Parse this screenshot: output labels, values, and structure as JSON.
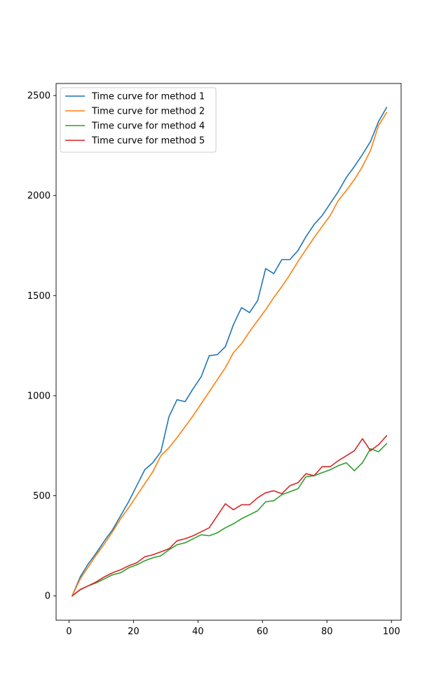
{
  "chart_data": {
    "type": "line",
    "title": "",
    "xlabel": "",
    "ylabel": "",
    "xlim": [
      -4.0,
      103.0
    ],
    "ylim": [
      -122,
      2560
    ],
    "xticks": [
      0,
      20,
      40,
      60,
      80,
      100
    ],
    "yticks": [
      0,
      500,
      1000,
      1500,
      2000,
      2500
    ],
    "grid": false,
    "legend_position": "top-left",
    "series": [
      {
        "name": "Time curve for method 1",
        "color": "#1f77b4",
        "x": [
          1,
          3.5,
          6,
          8.5,
          11,
          13.5,
          16,
          18.5,
          21,
          23.5,
          26,
          28.5,
          31,
          33.5,
          36,
          38.5,
          41,
          43.5,
          46,
          48.5,
          51,
          53.5,
          56,
          58.5,
          61,
          63.5,
          66,
          68.5,
          71,
          73.5,
          76,
          78.5,
          81,
          83.5,
          86,
          88.5,
          91,
          93.5,
          96,
          98.5
        ],
        "y": [
          0,
          95,
          160,
          215,
          275,
          330,
          400,
          470,
          550,
          630,
          665,
          720,
          895,
          980,
          970,
          1035,
          1095,
          1200,
          1205,
          1245,
          1355,
          1440,
          1415,
          1475,
          1635,
          1610,
          1680,
          1680,
          1725,
          1795,
          1855,
          1900,
          1960,
          2020,
          2090,
          2145,
          2205,
          2270,
          2370,
          2440
        ]
      },
      {
        "name": "Time curve for method 2",
        "color": "#ff7f0e",
        "x": [
          1,
          3.5,
          6,
          8.5,
          11,
          13.5,
          16,
          18.5,
          21,
          23.5,
          26,
          28.5,
          31,
          33.5,
          36,
          38.5,
          41,
          43.5,
          46,
          48.5,
          51,
          53.5,
          56,
          58.5,
          61,
          63.5,
          66,
          68.5,
          71,
          73.5,
          76,
          78.5,
          81,
          83.5,
          86,
          88.5,
          91,
          93.5,
          96,
          98.5
        ],
        "y": [
          0,
          85,
          145,
          205,
          260,
          320,
          385,
          440,
          500,
          560,
          620,
          700,
          740,
          790,
          845,
          900,
          960,
          1020,
          1080,
          1140,
          1215,
          1260,
          1320,
          1375,
          1430,
          1490,
          1545,
          1605,
          1670,
          1730,
          1790,
          1845,
          1900,
          1975,
          2025,
          2080,
          2145,
          2225,
          2350,
          2415
        ]
      },
      {
        "name": "Time curve for method 4",
        "color": "#2ca02c",
        "x": [
          1,
          3.5,
          6,
          8.5,
          11,
          13.5,
          16,
          18.5,
          21,
          23.5,
          26,
          28.5,
          31,
          33.5,
          36,
          38.5,
          41,
          43.5,
          46,
          48.5,
          51,
          53.5,
          56,
          58.5,
          61,
          63.5,
          66,
          68.5,
          71,
          73.5,
          76,
          78.5,
          81,
          83.5,
          86,
          88.5,
          91,
          93.5,
          96,
          98.5
        ],
        "y": [
          0,
          30,
          50,
          65,
          85,
          105,
          115,
          140,
          155,
          175,
          190,
          200,
          230,
          255,
          265,
          285,
          305,
          300,
          315,
          340,
          360,
          385,
          405,
          425,
          470,
          475,
          505,
          520,
          535,
          595,
          600,
          615,
          630,
          650,
          665,
          625,
          665,
          735,
          720,
          760
        ]
      },
      {
        "name": "Time curve for method 5",
        "color": "#d62728",
        "x": [
          1,
          3.5,
          6,
          8.5,
          11,
          13.5,
          16,
          18.5,
          21,
          23.5,
          26,
          28.5,
          31,
          33.5,
          36,
          38.5,
          41,
          43.5,
          46,
          48.5,
          51,
          53.5,
          56,
          58.5,
          61,
          63.5,
          66,
          68.5,
          71,
          73.5,
          76,
          78.5,
          81,
          83.5,
          86,
          88.5,
          91,
          93.5,
          96,
          98.5
        ],
        "y": [
          0,
          32,
          50,
          70,
          95,
          115,
          130,
          150,
          165,
          195,
          205,
          220,
          235,
          275,
          285,
          300,
          320,
          340,
          400,
          460,
          430,
          455,
          455,
          490,
          515,
          525,
          510,
          550,
          565,
          610,
          600,
          645,
          645,
          675,
          700,
          725,
          785,
          725,
          755,
          800
        ]
      }
    ]
  }
}
